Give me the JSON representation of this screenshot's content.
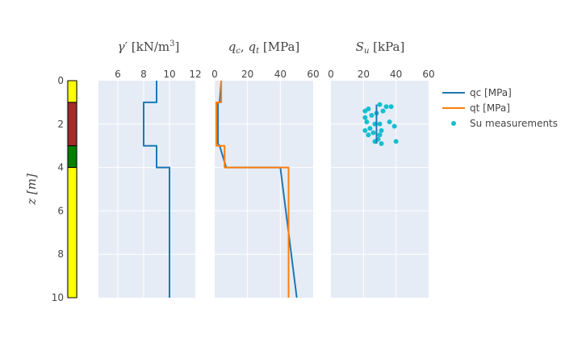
{
  "chart_data": [
    {
      "type": "table",
      "subtype": "soil-layer-column",
      "ylabel": "z [m]",
      "ylim": [
        0,
        10
      ],
      "y_ticks": [
        "0",
        "2",
        "4",
        "6",
        "8",
        "10"
      ],
      "layers": [
        {
          "top": 0,
          "bottom": 1,
          "color": "#ffff00"
        },
        {
          "top": 1,
          "bottom": 3,
          "color": "#a52a2a"
        },
        {
          "top": 3,
          "bottom": 4,
          "color": "#008000"
        },
        {
          "top": 4,
          "bottom": 10,
          "color": "#ffff00"
        }
      ]
    },
    {
      "type": "line",
      "title": "γ′ [kN/m³]",
      "title_symbol": "γ′",
      "title_units": "[kN/m",
      "title_sup": "3",
      "title_close": "]",
      "xlim": [
        4.5,
        12
      ],
      "x_ticks": [
        "6",
        "8",
        "10",
        "12"
      ],
      "ylim": [
        0,
        10
      ],
      "grid": true,
      "series": [
        {
          "color": "#1f77b4",
          "x": [
            9,
            9,
            8,
            8,
            9,
            9,
            10,
            10
          ],
          "y": [
            0,
            1,
            1,
            3,
            3,
            4,
            4,
            10
          ]
        }
      ]
    },
    {
      "type": "line",
      "title": "qc, qt [MPa]",
      "title_parts": [
        "q",
        "c",
        ", ",
        "q",
        "t",
        " [MPa]"
      ],
      "xlim": [
        0,
        60
      ],
      "x_ticks": [
        "0",
        "20",
        "40",
        "60"
      ],
      "ylim": [
        0,
        10
      ],
      "grid": true,
      "series": [
        {
          "name": "qc [MPa]",
          "color": "#1f77b4",
          "x": [
            4,
            3,
            2,
            2,
            3,
            5,
            7,
            40,
            50
          ],
          "y": [
            0,
            1,
            1,
            2.9,
            3,
            3.5,
            4,
            4,
            10
          ]
        },
        {
          "name": "qt [MPa]",
          "color": "#ff7f0e",
          "x": [
            4,
            4,
            1,
            1,
            6,
            6,
            45,
            45
          ],
          "y": [
            0,
            1,
            1,
            3,
            3,
            4,
            4,
            10
          ]
        }
      ]
    },
    {
      "type": "scatter",
      "title": "Su [kPa]",
      "title_parts": [
        "S",
        "u",
        " [kPa]"
      ],
      "xlim": [
        0,
        60
      ],
      "x_ticks": [
        "0",
        "20",
        "40",
        "60"
      ],
      "ylim": [
        0,
        10
      ],
      "grid": true,
      "series": [
        {
          "name": "Su measurements",
          "color": "#17becf",
          "x": [
            30,
            34,
            37,
            23,
            21,
            32,
            28,
            25,
            21,
            36,
            22,
            27,
            30,
            39,
            24,
            31,
            21,
            26,
            30,
            23,
            29,
            40,
            27,
            31
          ],
          "y": [
            1.1,
            1.2,
            1.2,
            1.3,
            1.4,
            1.4,
            1.5,
            1.6,
            1.7,
            1.9,
            1.9,
            2.0,
            2.0,
            2.1,
            2.2,
            2.3,
            2.3,
            2.4,
            2.5,
            2.5,
            2.7,
            2.8,
            2.8,
            2.9
          ]
        },
        {
          "color": "#1f77b4",
          "x": [
            28,
            28
          ],
          "y": [
            1.1,
            2.9
          ]
        }
      ]
    }
  ],
  "legend": {
    "placement": "top-right",
    "items": [
      {
        "label": "qc [MPa]",
        "kind": "line",
        "color": "#1f77b4"
      },
      {
        "label": "qt [MPa]",
        "kind": "line",
        "color": "#ff7f0e"
      },
      {
        "label": "Su measurements",
        "kind": "marker",
        "color": "#17becf"
      }
    ]
  }
}
